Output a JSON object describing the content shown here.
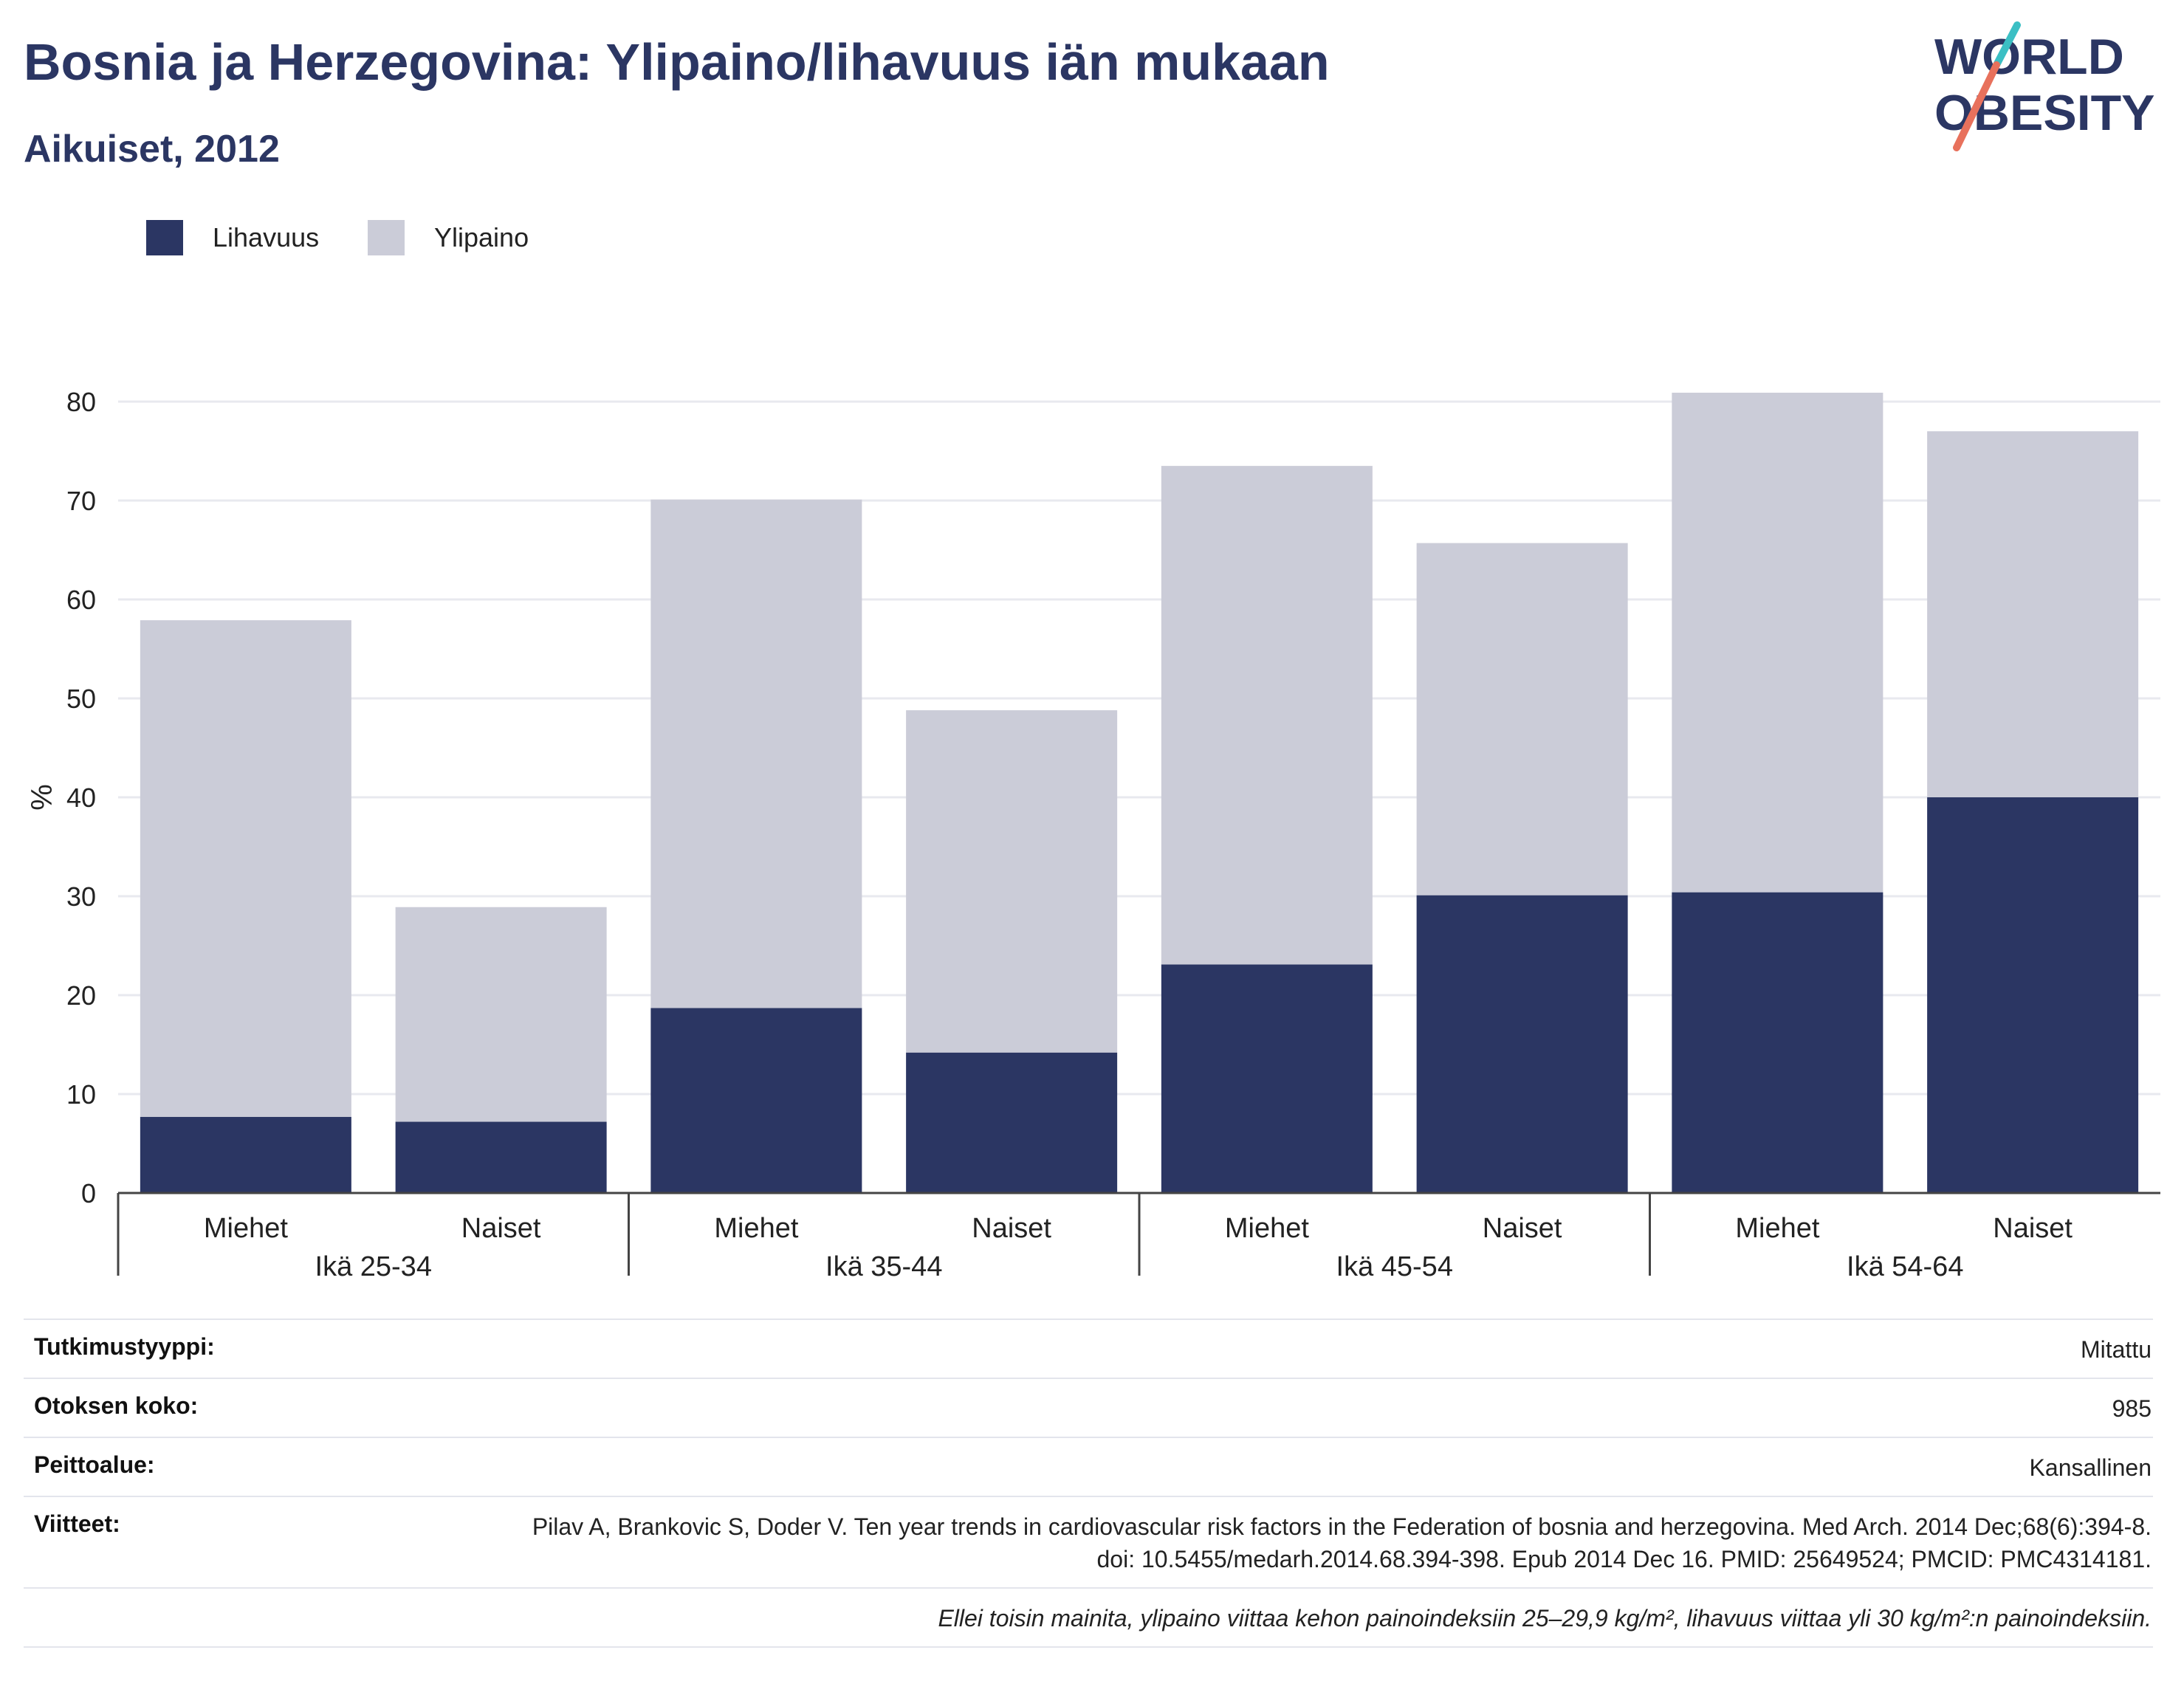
{
  "title": "Bosnia ja Herzegovina: Ylipaino/lihavuus iän mukaan",
  "subtitle": "Aikuiset, 2012",
  "logo": {
    "line1": "WORLD",
    "line2": "OBESITY",
    "accent_colors": [
      "#3bbfc4",
      "#e8715c"
    ]
  },
  "legend": [
    {
      "label": "Lihavuus",
      "color": "#2b3663"
    },
    {
      "label": "Ylipaino",
      "color": "#cbccd8"
    }
  ],
  "chart_data": {
    "type": "bar",
    "stacked": true,
    "ylabel": "%",
    "ylim": [
      0,
      80
    ],
    "yticks": [
      0,
      10,
      20,
      30,
      40,
      50,
      60,
      70,
      80
    ],
    "grid": true,
    "legend_position": "top-left",
    "groups": [
      {
        "label": "Ikä 25-34",
        "categories": [
          "Miehet",
          "Naiset"
        ]
      },
      {
        "label": "Ikä 35-44",
        "categories": [
          "Miehet",
          "Naiset"
        ]
      },
      {
        "label": "Ikä 45-54",
        "categories": [
          "Miehet",
          "Naiset"
        ]
      },
      {
        "label": "Ikä 54-64",
        "categories": [
          "Miehet",
          "Naiset"
        ]
      }
    ],
    "series": [
      {
        "name": "Lihavuus",
        "color": "#2b3663",
        "values": [
          7.7,
          7.2,
          18.7,
          14.2,
          23.1,
          30.1,
          30.4,
          40.0
        ]
      },
      {
        "name": "Ylipaino",
        "color": "#cbccd8",
        "values": [
          50.2,
          21.7,
          51.4,
          34.6,
          50.4,
          35.6,
          50.5,
          37.0
        ]
      }
    ]
  },
  "info": [
    {
      "label": "Tutkimustyyppi:",
      "value": "Mitattu"
    },
    {
      "label": "Otoksen koko:",
      "value": "985"
    },
    {
      "label": "Peittoalue:",
      "value": "Kansallinen"
    },
    {
      "label": "Viitteet:",
      "value": "Pilav A, Brankovic S, Doder V. Ten year trends in cardiovascular risk factors in the Federation of bosnia and herzegovina. Med Arch. 2014 Dec;68(6):394-8. doi: 10.5455/medarh.2014.68.394-398. Epub 2014 Dec 16. PMID: 25649524; PMCID: PMC4314181."
    }
  ],
  "footnote": "Ellei toisin mainita, ylipaino viittaa kehon painoindeksiin 25–29,9 kg/m², lihavuus viittaa yli 30 kg/m²:n painoindeksiin."
}
